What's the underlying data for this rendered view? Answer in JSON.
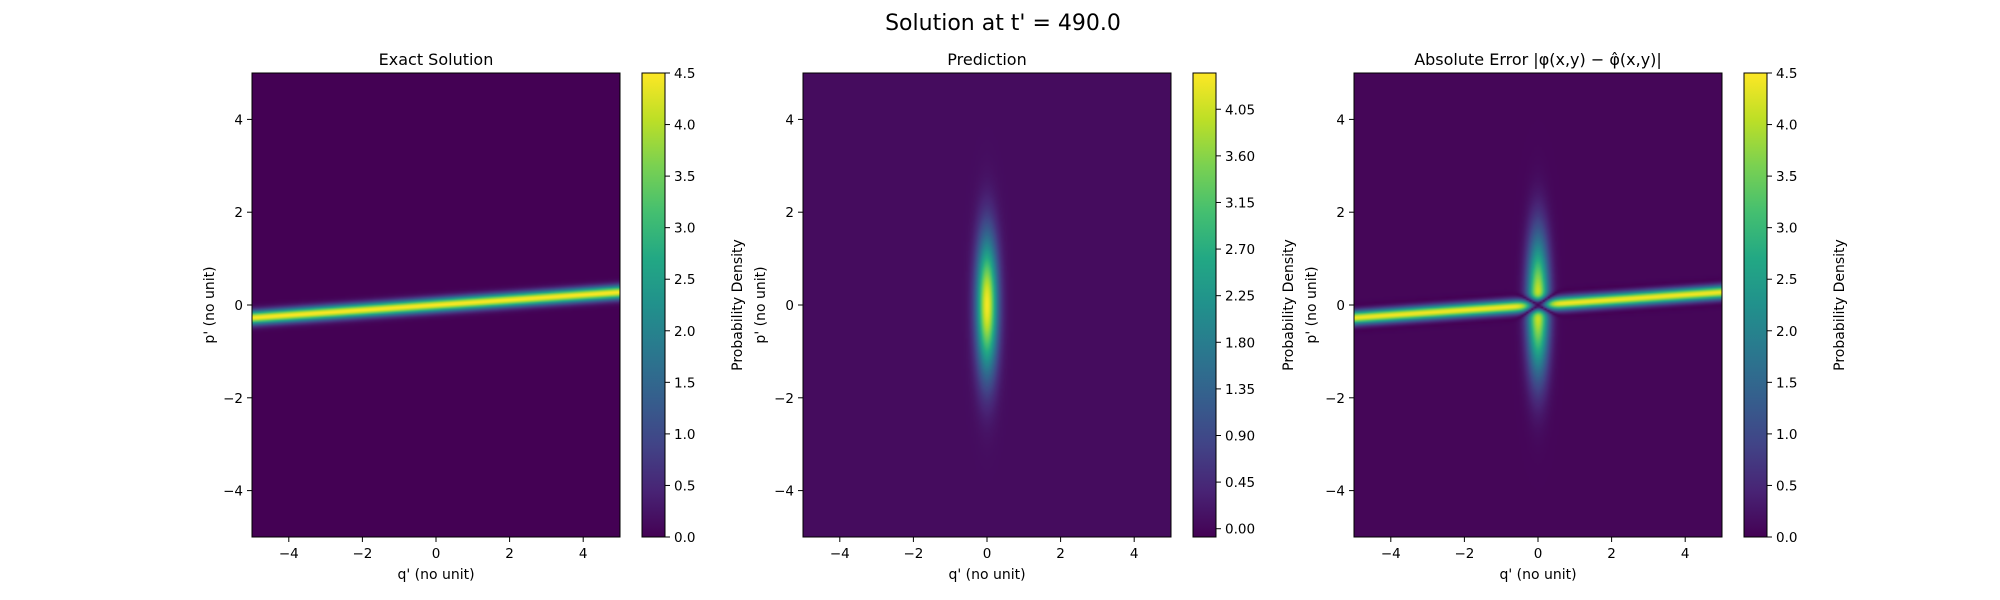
{
  "title": "Solution at t' = 490.0",
  "chart_data": [
    {
      "type": "heatmap",
      "title": "Exact Solution",
      "xlabel": "q' (no unit)",
      "ylabel": "p' (no unit)",
      "xlim": [
        -5,
        5
      ],
      "ylim": [
        -5,
        5
      ],
      "xticks": [
        "−4",
        "−2",
        "0",
        "2",
        "4"
      ],
      "yticks": [
        "−4",
        "−2",
        "0",
        "2",
        "4"
      ],
      "colorbar": {
        "label": "Probability Density",
        "range": [
          0,
          4.5
        ],
        "ticks": [
          "0.0",
          "0.5",
          "1.0",
          "1.5",
          "2.0",
          "2.5",
          "3.0",
          "3.5",
          "4.0",
          "4.5"
        ],
        "colormap": "viridis"
      },
      "field": {
        "kind": "tilted-ridge",
        "description": "narrow band along p' ≈ 0.055·q'",
        "slope": 0.055,
        "width": 0.1,
        "peak": 4.5
      }
    },
    {
      "type": "heatmap",
      "title": "Prediction",
      "xlabel": "q' (no unit)",
      "ylabel": "p' (no unit)",
      "xlim": [
        -5,
        5
      ],
      "ylim": [
        -5,
        5
      ],
      "xticks": [
        "−4",
        "−2",
        "0",
        "2",
        "4"
      ],
      "yticks": [
        "−4",
        "−2",
        "0",
        "2",
        "4"
      ],
      "colorbar": {
        "label": "Probability Density",
        "range": [
          -0.08,
          4.4
        ],
        "ticks": [
          "0.00",
          "0.45",
          "0.90",
          "1.35",
          "1.80",
          "2.25",
          "2.70",
          "3.15",
          "3.60",
          "4.05"
        ],
        "colormap": "viridis"
      },
      "field": {
        "kind": "vertical-gaussian",
        "description": "elongated Gaussian centered at origin, narrow in q', wide in p'",
        "sigma_q": 0.2,
        "sigma_p": 1.0,
        "peak": 4.35,
        "background": 0.06
      }
    },
    {
      "type": "heatmap",
      "title": "Absolute Error |φ(x,y) − φ̂(x,y)|",
      "xlabel": "q' (no unit)",
      "ylabel": "p' (no unit)",
      "xlim": [
        -5,
        5
      ],
      "ylim": [
        -5,
        5
      ],
      "xticks": [
        "−4",
        "−2",
        "0",
        "2",
        "4"
      ],
      "yticks": [
        "−4",
        "−2",
        "0",
        "2",
        "4"
      ],
      "colorbar": {
        "label": "Probability Density",
        "range": [
          0,
          4.5
        ],
        "ticks": [
          "0.0",
          "0.5",
          "1.0",
          "1.5",
          "2.0",
          "2.5",
          "3.0",
          "3.5",
          "4.0",
          "4.5"
        ],
        "colormap": "viridis"
      },
      "field": {
        "kind": "abs-difference",
        "description": "|exact − prediction|: tilted ridge plus vertical Gaussian, cancelling near origin"
      }
    }
  ]
}
